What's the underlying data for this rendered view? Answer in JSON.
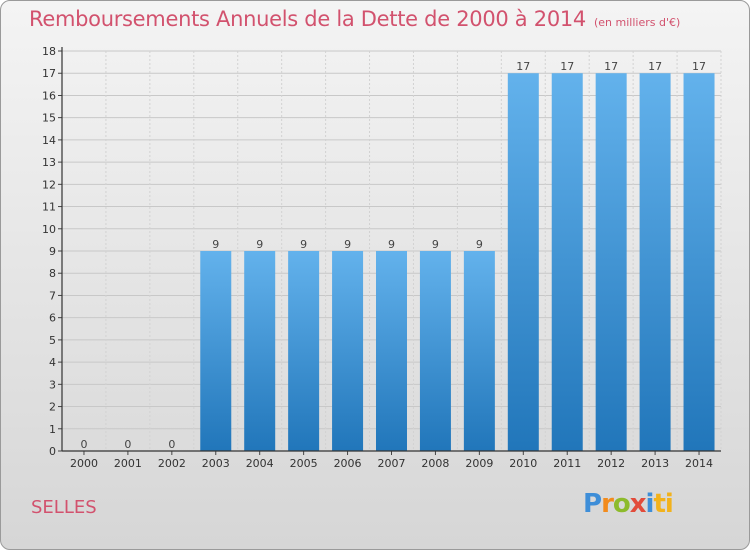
{
  "header": {
    "title": "Remboursements Annuels de la Dette de 2000 à 2014",
    "unit": "(en milliers d'€)"
  },
  "footer": {
    "commune": "SELLES",
    "logo_letters": [
      "P",
      "r",
      "o",
      "x",
      "i",
      "ti"
    ]
  },
  "colors": {
    "bar_light": "#63b2ec",
    "bar_dark": "#2176ba",
    "title": "#d2526e"
  },
  "chart_data": {
    "type": "bar",
    "title": "Remboursements Annuels de la Dette de 2000 à 2014",
    "xlabel": "",
    "ylabel": "",
    "ylim": [
      0,
      18
    ],
    "yticks": [
      0,
      1,
      2,
      3,
      4,
      5,
      6,
      7,
      8,
      9,
      10,
      11,
      12,
      13,
      14,
      15,
      16,
      17,
      18
    ],
    "grid": true,
    "categories": [
      "2000",
      "2001",
      "2002",
      "2003",
      "2004",
      "2005",
      "2006",
      "2007",
      "2008",
      "2009",
      "2010",
      "2011",
      "2012",
      "2013",
      "2014"
    ],
    "values": [
      0,
      0,
      0,
      9,
      9,
      9,
      9,
      9,
      9,
      9,
      17,
      17,
      17,
      17,
      17
    ]
  }
}
